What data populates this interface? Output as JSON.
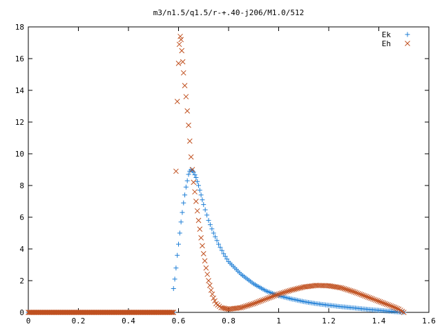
{
  "chart_data": {
    "type": "scatter",
    "title": "m3/n1.5/q1.5/r-+.40-j206/M1.0/512",
    "xlabel": "",
    "ylabel": "",
    "xlim": [
      0,
      1.6
    ],
    "ylim": [
      0,
      18
    ],
    "x_ticks": [
      "0",
      "0.2",
      "0.4",
      "0.6",
      "0.8",
      "1",
      "1.2",
      "1.4",
      "1.6"
    ],
    "y_ticks": [
      "0",
      "2",
      "4",
      "6",
      "8",
      "10",
      "12",
      "14",
      "16",
      "18"
    ],
    "grid": false,
    "legend": "top-right",
    "series": [
      {
        "name": "Ek",
        "marker": "plus",
        "color": "#1f7fd6",
        "points": [
          [
            0.58,
            1.5
          ],
          [
            0.585,
            2.1
          ],
          [
            0.59,
            2.8
          ],
          [
            0.595,
            3.6
          ],
          [
            0.6,
            4.3
          ],
          [
            0.605,
            5.0
          ],
          [
            0.61,
            5.7
          ],
          [
            0.615,
            6.3
          ],
          [
            0.62,
            6.9
          ],
          [
            0.625,
            7.4
          ],
          [
            0.63,
            7.9
          ],
          [
            0.635,
            8.3
          ],
          [
            0.64,
            8.7
          ],
          [
            0.645,
            8.9
          ],
          [
            0.65,
            9.0
          ],
          [
            0.66,
            8.85
          ],
          [
            0.67,
            8.5
          ],
          [
            0.68,
            8.0
          ],
          [
            0.69,
            7.4
          ],
          [
            0.7,
            6.8
          ],
          [
            0.72,
            5.8
          ],
          [
            0.74,
            5.0
          ],
          [
            0.76,
            4.3
          ],
          [
            0.78,
            3.7
          ],
          [
            0.8,
            3.2
          ],
          [
            0.85,
            2.4
          ],
          [
            0.9,
            1.8
          ],
          [
            0.95,
            1.35
          ],
          [
            1.0,
            1.05
          ],
          [
            1.05,
            0.85
          ],
          [
            1.1,
            0.68
          ],
          [
            1.15,
            0.55
          ],
          [
            1.2,
            0.45
          ],
          [
            1.25,
            0.36
          ],
          [
            1.3,
            0.28
          ],
          [
            1.35,
            0.2
          ],
          [
            1.4,
            0.13
          ],
          [
            1.45,
            0.06
          ],
          [
            1.5,
            0.0
          ]
        ]
      },
      {
        "name": "Eh",
        "marker": "x",
        "color": "#c0501f",
        "points": [
          [
            0.59,
            8.9
          ],
          [
            0.595,
            13.3
          ],
          [
            0.6,
            15.7
          ],
          [
            0.603,
            16.9
          ],
          [
            0.607,
            17.4
          ],
          [
            0.61,
            17.2
          ],
          [
            0.613,
            16.5
          ],
          [
            0.617,
            15.8
          ],
          [
            0.62,
            15.1
          ],
          [
            0.625,
            14.3
          ],
          [
            0.63,
            13.6
          ],
          [
            0.635,
            12.7
          ],
          [
            0.64,
            11.8
          ],
          [
            0.645,
            10.8
          ],
          [
            0.65,
            9.8
          ],
          [
            0.655,
            9.0
          ],
          [
            0.66,
            8.2
          ],
          [
            0.67,
            7.0
          ],
          [
            0.68,
            5.8
          ],
          [
            0.69,
            4.7
          ],
          [
            0.7,
            3.7
          ],
          [
            0.71,
            2.8
          ],
          [
            0.72,
            2.0
          ],
          [
            0.73,
            1.4
          ],
          [
            0.74,
            0.9
          ],
          [
            0.75,
            0.55
          ],
          [
            0.77,
            0.3
          ],
          [
            0.8,
            0.2
          ],
          [
            0.85,
            0.3
          ],
          [
            0.9,
            0.55
          ],
          [
            0.95,
            0.85
          ],
          [
            1.0,
            1.15
          ],
          [
            1.05,
            1.4
          ],
          [
            1.1,
            1.6
          ],
          [
            1.15,
            1.7
          ],
          [
            1.2,
            1.68
          ],
          [
            1.25,
            1.55
          ],
          [
            1.3,
            1.3
          ],
          [
            1.35,
            1.0
          ],
          [
            1.4,
            0.7
          ],
          [
            1.45,
            0.4
          ],
          [
            1.48,
            0.2
          ],
          [
            1.5,
            0.0
          ]
        ]
      }
    ],
    "baseline_segment": {
      "x_from": 0.0,
      "x_to": 0.58,
      "y": 0,
      "series": "both"
    }
  }
}
